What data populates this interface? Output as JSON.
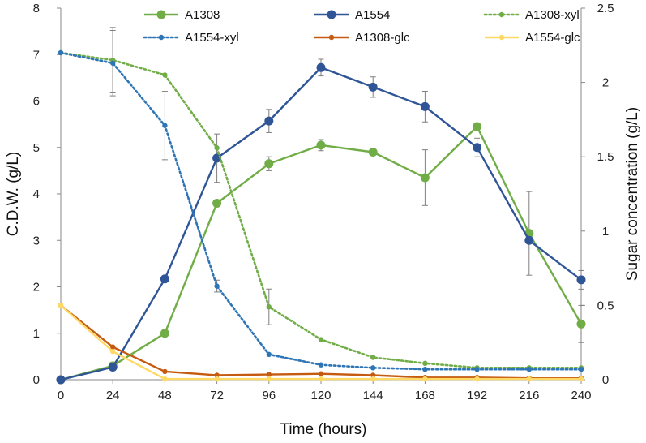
{
  "chart_data": {
    "type": "line",
    "title": "",
    "xlabel": "Time (hours)",
    "ylabel": "C.D.W. (g/L)",
    "y2label": "Sugar concentration (g/L)",
    "xlim": [
      0,
      240
    ],
    "ylim": [
      0,
      8
    ],
    "y2lim": [
      0,
      2.5
    ],
    "x_ticks": [
      "0",
      "24",
      "48",
      "72",
      "96",
      "120",
      "144",
      "168",
      "192",
      "216",
      "240"
    ],
    "y_ticks": [
      "0",
      "1",
      "2",
      "3",
      "4",
      "5",
      "6",
      "7",
      "8"
    ],
    "y2_ticks": [
      "0",
      "0.5",
      "1",
      "1.5",
      "2",
      "2.5"
    ],
    "legend_position": "top",
    "grid": false,
    "series": [
      {
        "name": "A1308",
        "axis": "left",
        "style": "solid",
        "marker": "circle-large",
        "color": "#70AD47",
        "x": [
          0,
          24,
          48,
          72,
          96,
          120,
          144,
          168,
          192,
          216,
          240
        ],
        "values": [
          0,
          0.3,
          1.0,
          3.8,
          4.65,
          5.05,
          4.9,
          4.35,
          5.45,
          3.15,
          1.2
        ],
        "errors": [
          0,
          0,
          0,
          0,
          0.15,
          0.12,
          0,
          0.6,
          0,
          0.9,
          0.4
        ]
      },
      {
        "name": "A1554",
        "axis": "left",
        "style": "solid",
        "marker": "circle-large",
        "color": "#2F5597",
        "x": [
          0,
          24,
          48,
          72,
          96,
          120,
          144,
          168,
          192,
          216,
          240
        ],
        "values": [
          0,
          0.27,
          2.17,
          4.77,
          5.57,
          6.72,
          6.3,
          5.88,
          5.0,
          3.0,
          2.15
        ],
        "errors": [
          0,
          0,
          0,
          0.52,
          0.25,
          0.18,
          0.22,
          0.33,
          0.2,
          0,
          0.2
        ]
      },
      {
        "name": "A1308-xyl",
        "axis": "right",
        "style": "dotted",
        "marker": "circle-small",
        "color": "#70AD47",
        "x": [
          0,
          24,
          48,
          72,
          96,
          120,
          144,
          168,
          192,
          216,
          240
        ],
        "values": [
          2.2,
          2.15,
          2.05,
          1.56,
          0.49,
          0.27,
          0.15,
          0.11,
          0.08,
          0.08,
          0.08
        ],
        "errors": [
          0,
          0.22,
          0,
          0,
          0.12,
          0,
          0,
          0,
          0,
          0,
          0
        ]
      },
      {
        "name": "A1554-xyl",
        "axis": "right",
        "style": "dotted",
        "marker": "circle-small",
        "color": "#2E75B6",
        "x": [
          0,
          24,
          48,
          72,
          96,
          120,
          144,
          168,
          192,
          216,
          240
        ],
        "values": [
          2.2,
          2.13,
          1.71,
          0.63,
          0.17,
          0.1,
          0.08,
          0.07,
          0.07,
          0.07,
          0.07
        ],
        "errors": [
          0,
          0.22,
          0.23,
          0.04,
          0,
          0,
          0,
          0,
          0,
          0,
          0
        ]
      },
      {
        "name": "A1308-glc",
        "axis": "right",
        "style": "solid",
        "marker": "circle-small",
        "color": "#C55A11",
        "x": [
          0,
          24,
          48,
          72,
          96,
          120,
          144,
          168,
          192,
          216,
          240
        ],
        "values": [
          0.5,
          0.22,
          0.055,
          0.03,
          0.035,
          0.04,
          0.03,
          0.015,
          0.015,
          0.01,
          0.01
        ],
        "errors": [
          0,
          0,
          0,
          0,
          0,
          0,
          0,
          0,
          0,
          0,
          0
        ]
      },
      {
        "name": "A1554-glc",
        "axis": "right",
        "style": "solid",
        "marker": "circle-small",
        "color": "#FFD966",
        "x": [
          0,
          24,
          48,
          72,
          96,
          120,
          144,
          168,
          192,
          216,
          240
        ],
        "values": [
          0.5,
          0.19,
          0.005,
          0.005,
          0.005,
          0.005,
          0.005,
          0.005,
          0.005,
          0.005,
          0.005
        ],
        "errors": [
          0,
          0,
          0,
          0,
          0,
          0,
          0,
          0,
          0,
          0,
          0
        ]
      }
    ]
  }
}
